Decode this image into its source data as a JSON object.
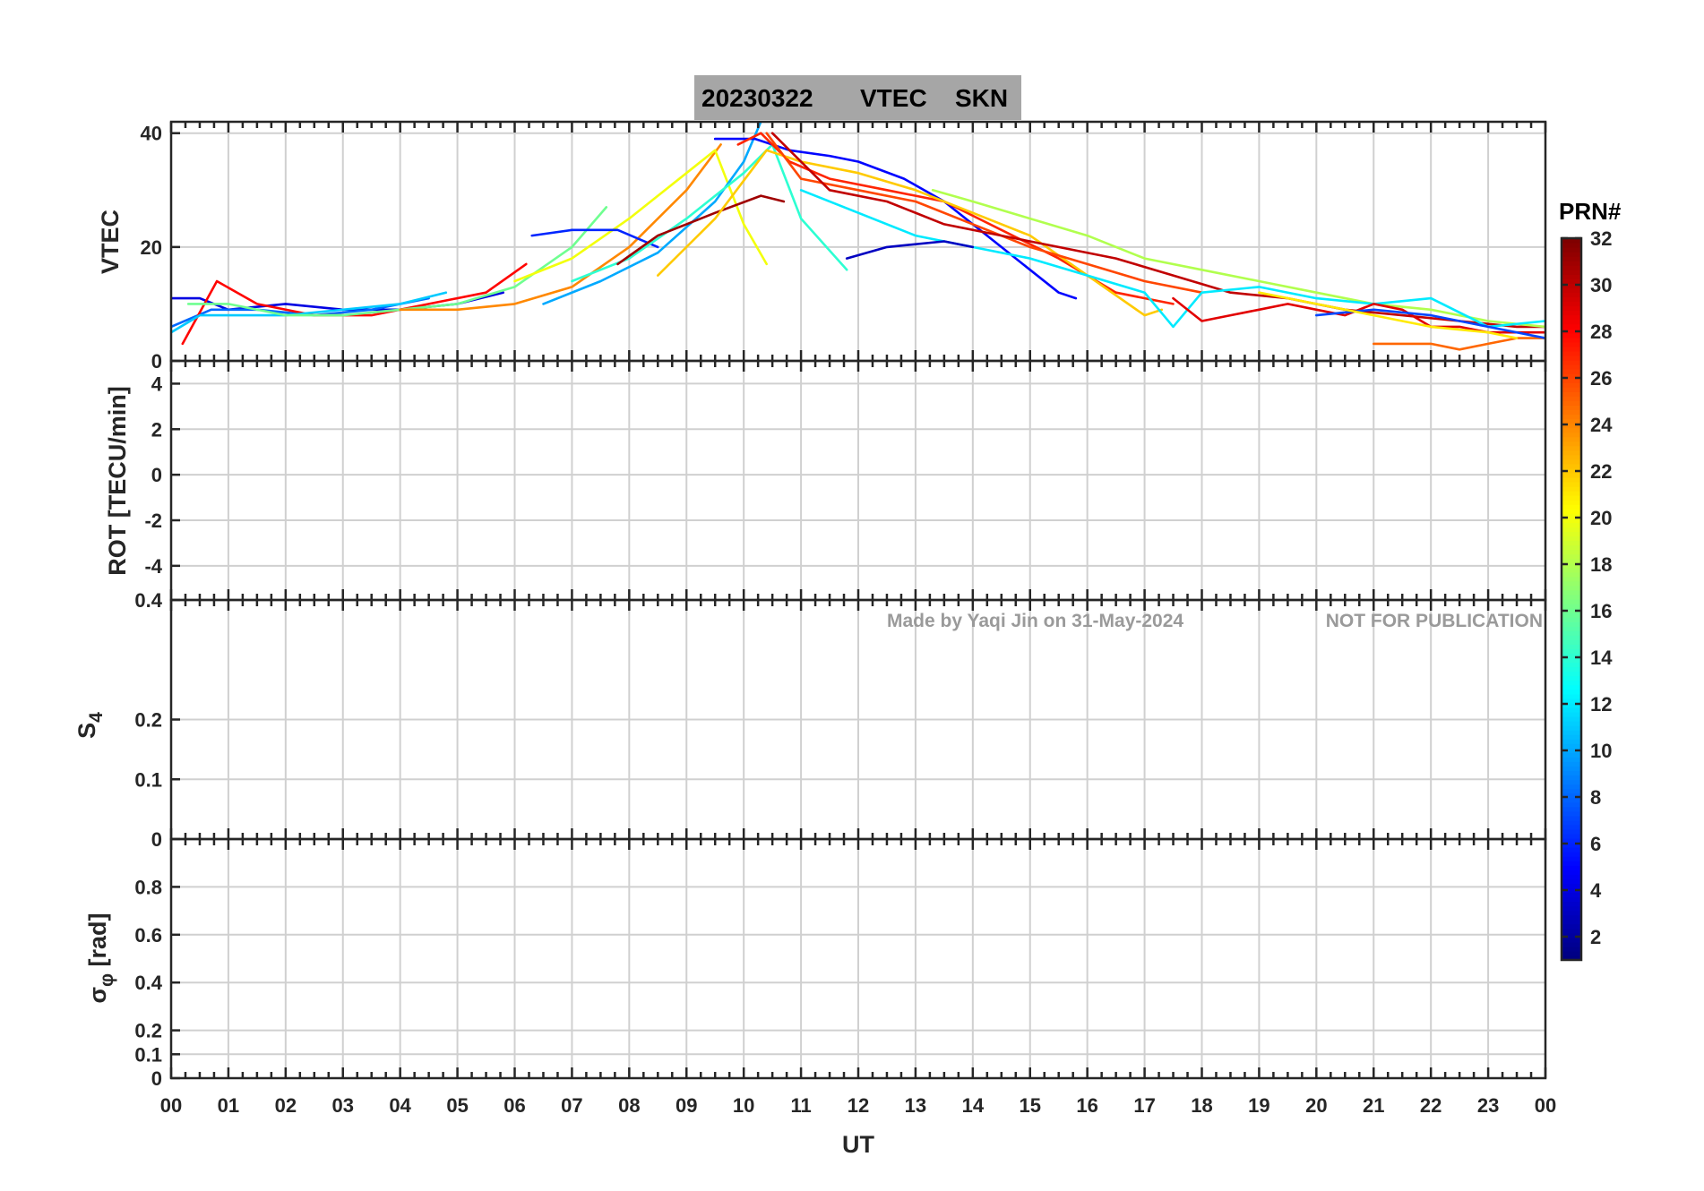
{
  "title": {
    "date": "20230322",
    "quantity": "VTEC",
    "station": "SKN"
  },
  "watermark": {
    "left": "Made by Yaqi Jin on 31-May-2024",
    "right": "NOT FOR PUBLICATION"
  },
  "colorbar": {
    "title": "PRN#",
    "colormap": "jet",
    "range": [
      1,
      32
    ],
    "ticks": [
      "2",
      "4",
      "6",
      "8",
      "10",
      "12",
      "14",
      "16",
      "18",
      "20",
      "22",
      "24",
      "26",
      "28",
      "30",
      "32"
    ]
  },
  "chart_data": {
    "type": "line",
    "shared_x": {
      "label": "UT",
      "range": [
        0,
        24
      ],
      "tick_values": [
        0,
        1,
        2,
        3,
        4,
        5,
        6,
        7,
        8,
        9,
        10,
        11,
        12,
        13,
        14,
        15,
        16,
        17,
        18,
        19,
        20,
        21,
        22,
        23,
        24
      ],
      "tick_labels": [
        "00",
        "01",
        "02",
        "03",
        "04",
        "05",
        "06",
        "07",
        "08",
        "09",
        "10",
        "11",
        "12",
        "13",
        "14",
        "15",
        "16",
        "17",
        "18",
        "19",
        "20",
        "21",
        "22",
        "23",
        "00"
      ]
    },
    "grid": true,
    "legend": "colorbar-right",
    "panels": [
      {
        "id": "vtec",
        "ylabel": "VTEC",
        "ylim": [
          0,
          42
        ],
        "tick_values": [
          0,
          20,
          40
        ],
        "tick_labels": [
          "0",
          "20",
          "40"
        ]
      },
      {
        "id": "rot",
        "ylabel": "ROT [TECU/min]",
        "ylim": [
          -5.5,
          5
        ],
        "tick_values": [
          -4,
          -2,
          0,
          2,
          4
        ],
        "tick_labels": [
          "-4",
          "-2",
          "0",
          "2",
          "4"
        ]
      },
      {
        "id": "s4",
        "ylabel": "S",
        "ylabel_sub": "4",
        "ylim": [
          0,
          0.4
        ],
        "tick_values": [
          0,
          0.1,
          0.2,
          0.4
        ],
        "tick_labels": [
          "0",
          "0.1",
          "0.2",
          "0.4"
        ]
      },
      {
        "id": "sigphi",
        "ylabel": "σ",
        "ylabel_sub": "φ",
        "ylabel_suffix": " [rad]",
        "ylim": [
          0,
          1
        ],
        "tick_values": [
          0,
          0.1,
          0.2,
          0.4,
          0.6,
          0.8
        ],
        "tick_labels": [
          "0",
          "0.1",
          "0.2",
          "0.4",
          "0.6",
          "0.8"
        ]
      }
    ],
    "vtec_series": [
      {
        "prn": 4,
        "x": [
          0.0,
          0.5,
          1.0,
          2.0,
          3.0,
          4.0,
          5.0,
          5.8
        ],
        "y": [
          11,
          11,
          9,
          10,
          9,
          9,
          10,
          12
        ]
      },
      {
        "prn": 8,
        "x": [
          0.0,
          0.7,
          1.5,
          2.5,
          3.5,
          4.5
        ],
        "y": [
          6,
          9,
          9,
          8,
          9,
          11
        ]
      },
      {
        "prn": 28,
        "x": [
          0.2,
          0.8,
          1.5,
          2.5,
          3.5,
          4.5,
          5.5,
          6.2
        ],
        "y": [
          3,
          14,
          10,
          8,
          8,
          10,
          12,
          17
        ]
      },
      {
        "prn": 11,
        "x": [
          0.0,
          0.5,
          1.2,
          2.0,
          3.0,
          4.0,
          4.8
        ],
        "y": [
          5,
          8,
          8,
          8,
          9,
          10,
          12
        ]
      },
      {
        "prn": 16,
        "x": [
          0.3,
          1.0,
          2.0,
          3.0,
          4.0,
          5.0,
          6.0,
          7.0,
          7.6
        ],
        "y": [
          10,
          10,
          8,
          8,
          9,
          10,
          13,
          20,
          27
        ]
      },
      {
        "prn": 24,
        "x": [
          4.0,
          5.0,
          6.0,
          7.0,
          8.0,
          9.0,
          9.6
        ],
        "y": [
          9,
          9,
          10,
          13,
          20,
          30,
          38
        ]
      },
      {
        "prn": 20,
        "x": [
          6.0,
          7.0,
          8.0,
          9.0,
          9.5,
          10.0,
          10.4
        ],
        "y": [
          14,
          18,
          25,
          33,
          37,
          24,
          17
        ]
      },
      {
        "prn": 10,
        "x": [
          6.5,
          7.5,
          8.5,
          9.5,
          10.0,
          10.3
        ],
        "y": [
          10,
          14,
          19,
          28,
          35,
          42
        ]
      },
      {
        "prn": 6,
        "x": [
          6.3,
          7.0,
          7.8,
          8.5
        ],
        "y": [
          22,
          23,
          23,
          20
        ]
      },
      {
        "prn": 14,
        "x": [
          7.0,
          8.0,
          9.0,
          10.0,
          10.5,
          11.0,
          11.8
        ],
        "y": [
          14,
          18,
          25,
          33,
          38,
          25,
          16
        ]
      },
      {
        "prn": 31,
        "x": [
          7.8,
          8.5,
          9.5,
          10.3,
          10.7
        ],
        "y": [
          17,
          22,
          26,
          29,
          28
        ]
      },
      {
        "prn": 5,
        "x": [
          9.5,
          10.2,
          10.8,
          11.5,
          12.0,
          12.8,
          13.5,
          14.5,
          15.5,
          15.8
        ],
        "y": [
          39,
          39,
          37,
          36,
          35,
          32,
          28,
          20,
          12,
          11
        ]
      },
      {
        "prn": 27,
        "x": [
          9.9,
          10.3,
          10.8,
          11.5,
          12.5,
          13.5,
          14.5,
          15.5,
          16.5,
          17.5
        ],
        "y": [
          38,
          40,
          35,
          32,
          30,
          28,
          23,
          18,
          12,
          10
        ]
      },
      {
        "prn": 22,
        "x": [
          8.5,
          9.5,
          10.4,
          11.0,
          12.0,
          13.0,
          14.0,
          15.0,
          16.0,
          17.0,
          17.3
        ],
        "y": [
          15,
          25,
          37,
          35,
          33,
          30,
          26,
          22,
          15,
          8,
          9
        ]
      },
      {
        "prn": 26,
        "x": [
          10.4,
          11.0,
          12.0,
          13.0,
          14.0,
          15.0,
          16.0,
          17.0,
          18.0
        ],
        "y": [
          40,
          32,
          30,
          28,
          24,
          20,
          17,
          14,
          12
        ]
      },
      {
        "prn": 30,
        "x": [
          10.5,
          11.5,
          12.5,
          13.5,
          14.5,
          15.5,
          16.5,
          17.5,
          18.5,
          19.5,
          20.5,
          21.5,
          22.5,
          23.5,
          24.0
        ],
        "y": [
          40,
          30,
          28,
          24,
          22,
          20,
          18,
          15,
          12,
          11,
          9,
          8,
          7,
          6,
          6
        ]
      },
      {
        "prn": 18,
        "x": [
          13.3,
          14.0,
          15.0,
          16.0,
          17.0,
          18.0,
          19.0,
          20.0,
          21.0,
          22.0,
          23.0,
          24.0
        ],
        "y": [
          30,
          28,
          25,
          22,
          18,
          16,
          14,
          12,
          10,
          9,
          7,
          6
        ]
      },
      {
        "prn": 12,
        "x": [
          11.0,
          12.0,
          13.0,
          14.0,
          15.0,
          16.0,
          17.0,
          17.5,
          18.0,
          19.0,
          20.0,
          21.0,
          22.0,
          23.0,
          24.0
        ],
        "y": [
          30,
          26,
          22,
          20,
          18,
          15,
          12,
          6,
          12,
          13,
          11,
          10,
          11,
          6,
          7
        ]
      },
      {
        "prn": 3,
        "x": [
          11.8,
          12.5,
          13.5,
          14.0
        ],
        "y": [
          18,
          20,
          21,
          20
        ]
      },
      {
        "prn": 29,
        "x": [
          17.5,
          18.0,
          18.5,
          19.0,
          19.5,
          20.0,
          20.5,
          21.0,
          21.5,
          22.0,
          22.5,
          23.0,
          23.5,
          24.0
        ],
        "y": [
          11,
          7,
          8,
          9,
          10,
          9,
          8,
          10,
          9,
          6,
          6,
          5,
          5,
          5
        ]
      },
      {
        "prn": 25,
        "x": [
          21.0,
          21.5,
          22.0,
          22.5,
          23.0,
          23.5,
          24.0
        ],
        "y": [
          3,
          3,
          3,
          2,
          3,
          4,
          4
        ]
      },
      {
        "prn": 7,
        "x": [
          20.0,
          21.0,
          22.0,
          23.0,
          24.0
        ],
        "y": [
          8,
          9,
          8,
          6,
          4
        ]
      },
      {
        "prn": 21,
        "x": [
          19.0,
          20.0,
          21.0,
          22.0,
          23.0,
          23.5
        ],
        "y": [
          12,
          10,
          8,
          6,
          5,
          4
        ]
      }
    ]
  }
}
